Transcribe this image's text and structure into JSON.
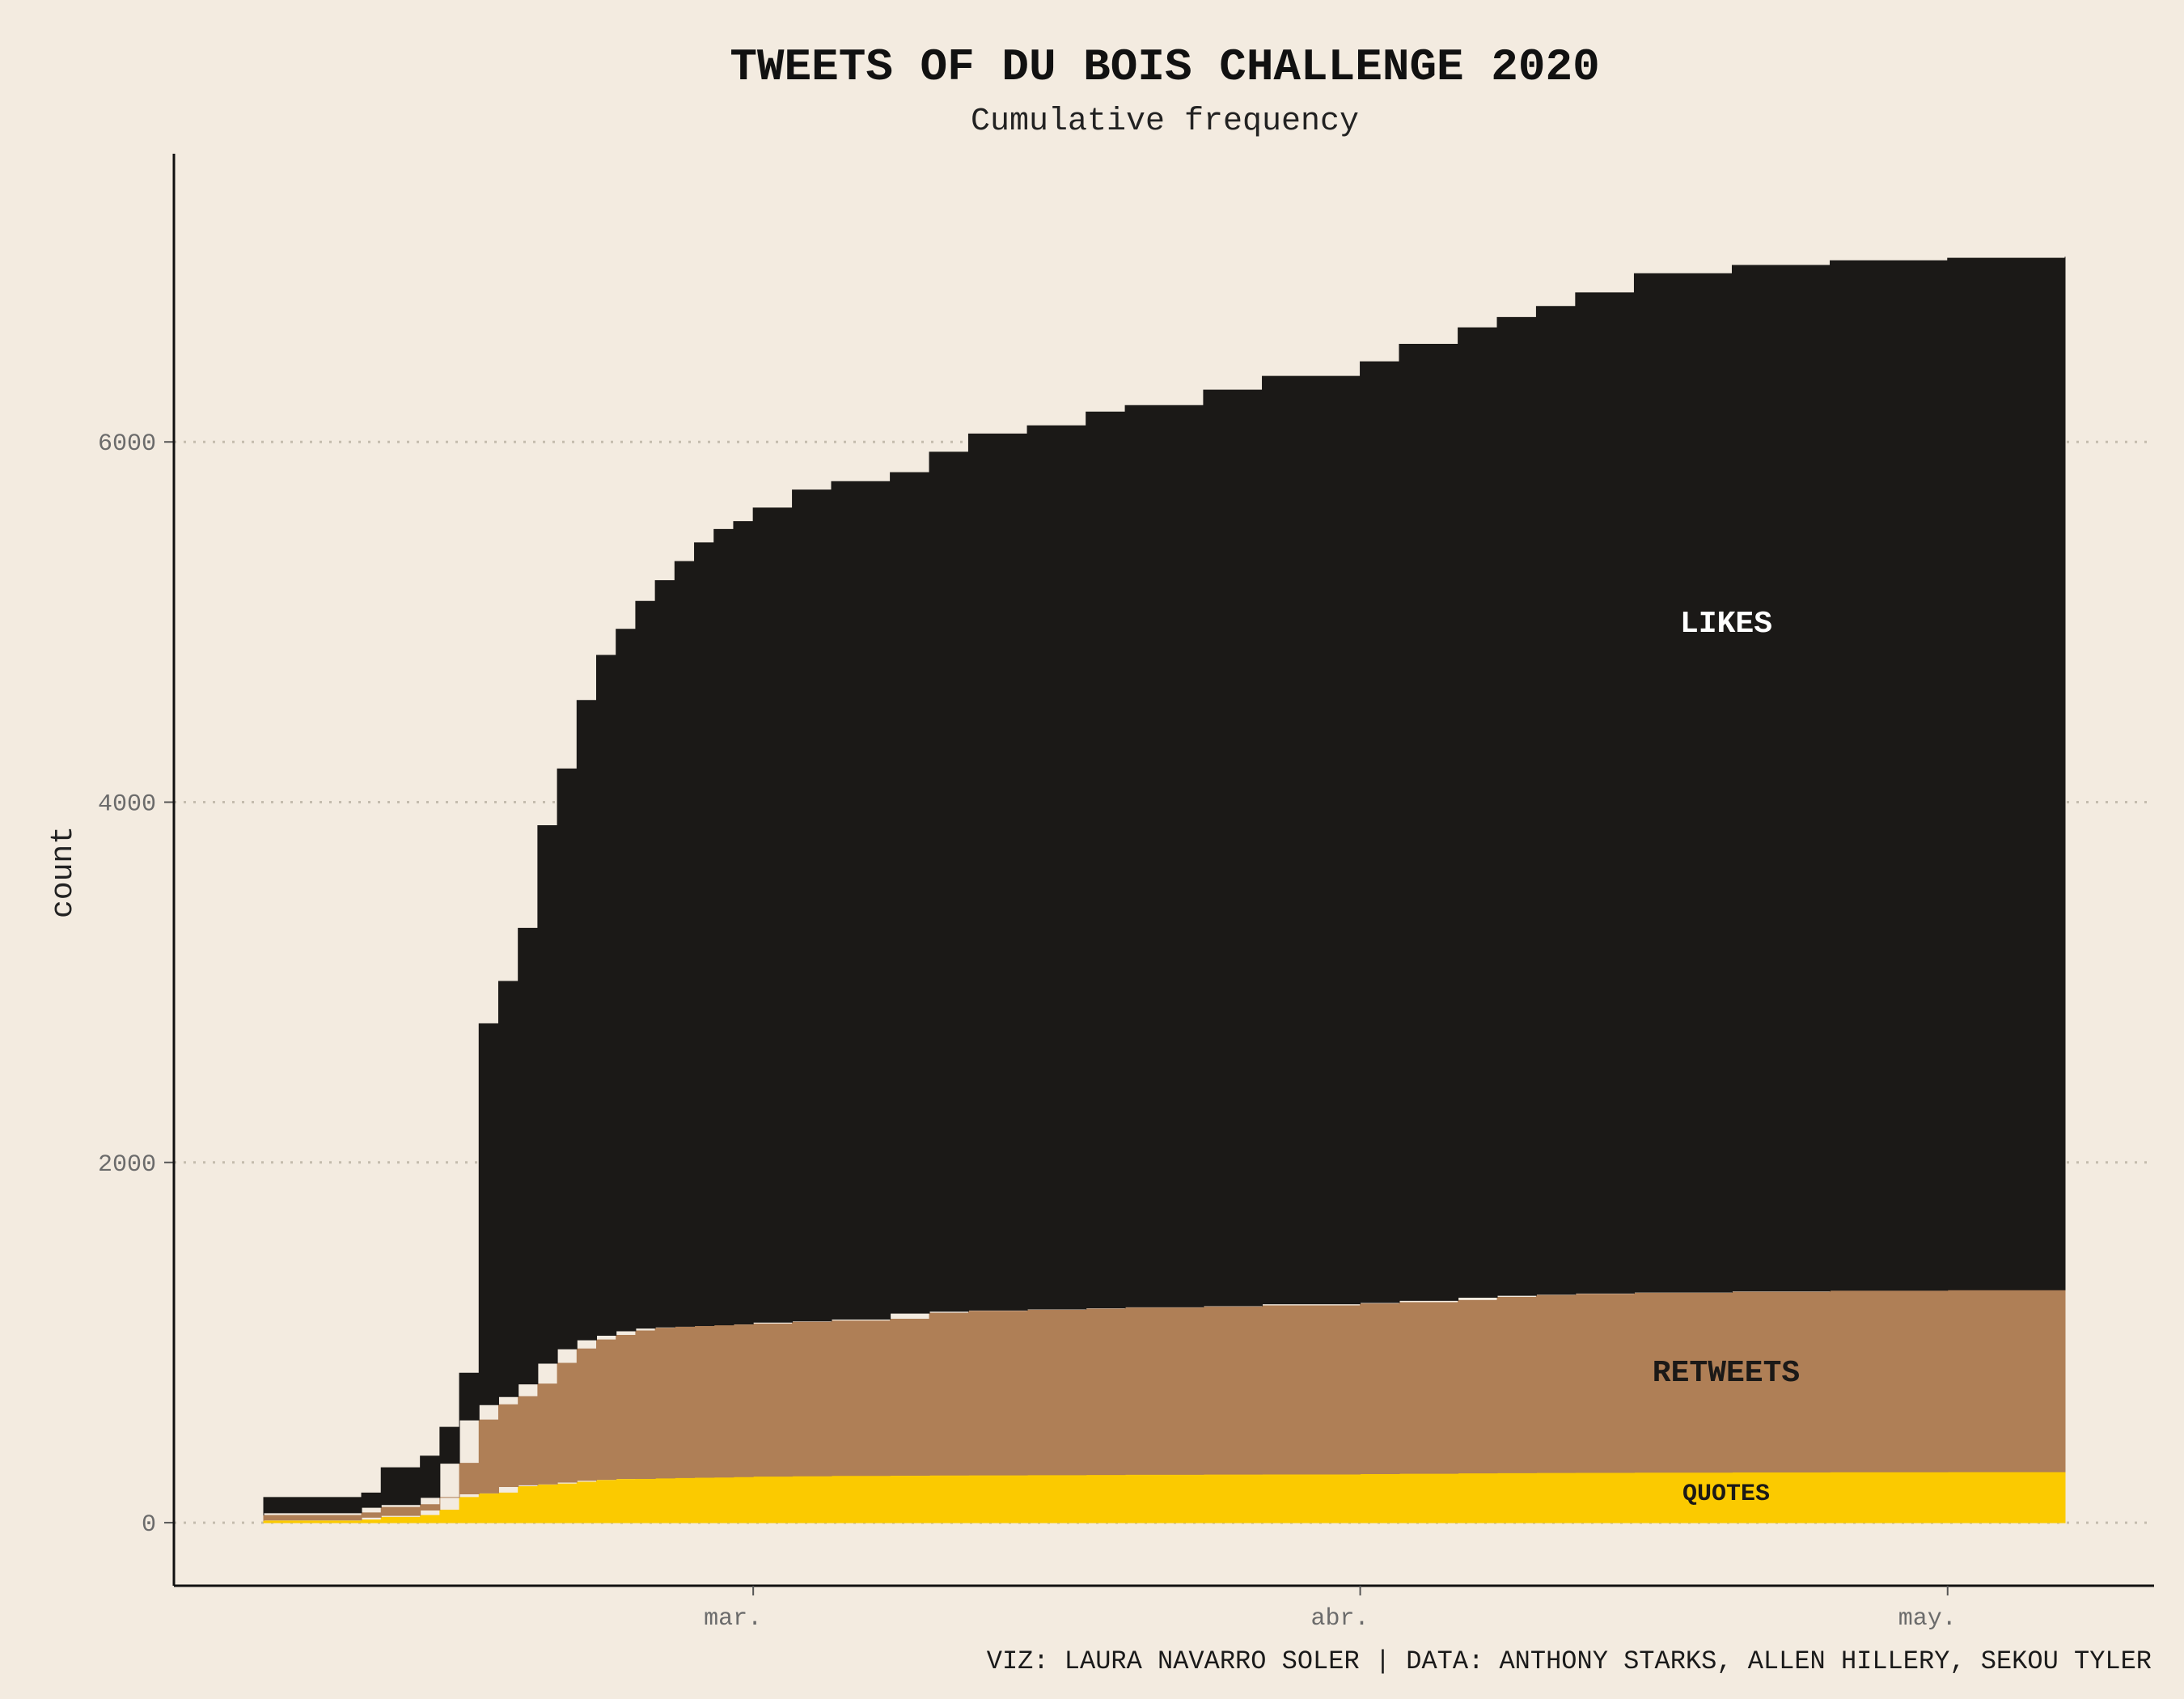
{
  "chart_data": {
    "type": "area",
    "title": "TWEETS OF DU BOIS CHALLENGE 2020",
    "subtitle": "Cumulative frequency",
    "xlabel": "",
    "ylabel": "count",
    "caption": "VIZ: LAURA NAVARRO SOLER | DATA:  ANTHONY STARKS, ALLEN HILLERY, SEKOU TYLER",
    "stacked": true,
    "x_start": "2020-02-05",
    "x_end": "2020-05-07",
    "x_ticks": [
      {
        "date": "2020-03-01",
        "label": "mar."
      },
      {
        "date": "2020-04-01",
        "label": "abr."
      },
      {
        "date": "2020-05-01",
        "label": "may."
      }
    ],
    "ylim": [
      -350,
      7600
    ],
    "y_ticks": [
      0,
      2000,
      4000,
      6000
    ],
    "grid": "horizontal-dotted",
    "x": [
      "2020-02-05",
      "2020-02-10",
      "2020-02-11",
      "2020-02-13",
      "2020-02-14",
      "2020-02-15",
      "2020-02-16",
      "2020-02-17",
      "2020-02-18",
      "2020-02-19",
      "2020-02-20",
      "2020-02-21",
      "2020-02-22",
      "2020-02-23",
      "2020-02-24",
      "2020-02-25",
      "2020-02-26",
      "2020-02-27",
      "2020-02-28",
      "2020-02-29",
      "2020-03-01",
      "2020-03-03",
      "2020-03-05",
      "2020-03-08",
      "2020-03-10",
      "2020-03-12",
      "2020-03-15",
      "2020-03-18",
      "2020-03-20",
      "2020-03-24",
      "2020-03-27",
      "2020-04-01",
      "2020-04-03",
      "2020-04-06",
      "2020-04-08",
      "2020-04-10",
      "2020-04-12",
      "2020-04-15",
      "2020-04-20",
      "2020-04-25",
      "2020-05-01",
      "2020-05-07"
    ],
    "series": [
      {
        "name": "QUOTES",
        "color": "#fbca00",
        "values": [
          10,
          15,
          30,
          40,
          70,
          140,
          160,
          165,
          200,
          210,
          215,
          225,
          235,
          240,
          245,
          245,
          248,
          250,
          252,
          253,
          255,
          258,
          260,
          262,
          263,
          264,
          265,
          266,
          267,
          268,
          269,
          270,
          272,
          274,
          276,
          277,
          278,
          279,
          280,
          281,
          282,
          283
        ]
      },
      {
        "name": "RETWEETS",
        "color": "#af7f56",
        "values": [
          30,
          40,
          55,
          60,
          70,
          190,
          410,
          490,
          500,
          560,
          670,
          740,
          780,
          800,
          820,
          835,
          838,
          840,
          842,
          845,
          848,
          855,
          860,
          868,
          900,
          910,
          915,
          920,
          925,
          930,
          935,
          945,
          950,
          960,
          975,
          985,
          990,
          995,
          1000,
          1005,
          1008,
          1010
        ]
      },
      {
        "name": "LIKES",
        "color": "#1b1917",
        "values": [
          100,
          110,
          220,
          270,
          390,
          500,
          2200,
          2350,
          2600,
          3100,
          3300,
          3600,
          3800,
          3920,
          4050,
          4150,
          4250,
          4350,
          4420,
          4460,
          4530,
          4620,
          4660,
          4700,
          4780,
          4870,
          4910,
          4980,
          5010,
          5090,
          5160,
          5230,
          5320,
          5400,
          5440,
          5490,
          5560,
          5660,
          5700,
          5720,
          5730,
          5735
        ]
      }
    ]
  }
}
